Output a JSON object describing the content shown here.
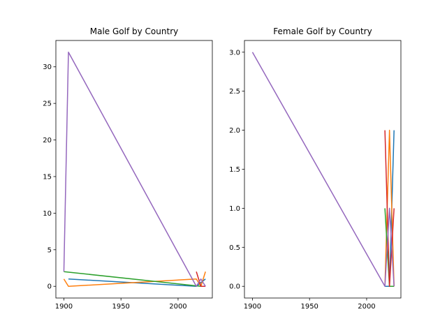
{
  "chart_data": [
    {
      "type": "line",
      "title": "Male Golf by Country",
      "xlabel": "",
      "ylabel": "",
      "xlim": [
        1893,
        2030
      ],
      "ylim": [
        -1.6,
        33.6
      ],
      "xticks": [
        1900,
        1950,
        2000
      ],
      "yticks": [
        0,
        5,
        10,
        15,
        20,
        25,
        30
      ],
      "x_tick_labels": [
        "1900",
        "1950",
        "2000"
      ],
      "y_tick_labels": [
        "0",
        "5",
        "10",
        "15",
        "20",
        "25",
        "30"
      ],
      "grid": false,
      "series": [
        {
          "color": "#1f77b4",
          "x": [
            1904,
            2016,
            2024
          ],
          "y": [
            1,
            0,
            1
          ]
        },
        {
          "color": "#ff7f0e",
          "x": [
            1900,
            1904,
            2016,
            2020,
            2024
          ],
          "y": [
            1,
            0,
            1,
            0,
            2
          ]
        },
        {
          "color": "#2ca02c",
          "x": [
            1900,
            2020
          ],
          "y": [
            2,
            0
          ]
        },
        {
          "color": "#d62728",
          "x": [
            2016,
            2020,
            2024
          ],
          "y": [
            2,
            0,
            0
          ]
        },
        {
          "color": "#9467bd",
          "x": [
            1900,
            1904,
            2016,
            2020,
            2024
          ],
          "y": [
            2,
            32,
            0,
            1,
            0
          ]
        }
      ]
    },
    {
      "type": "line",
      "title": "Female Golf by Country",
      "xlabel": "",
      "ylabel": "",
      "xlim": [
        1893,
        2030
      ],
      "ylim": [
        -0.15,
        3.15
      ],
      "xticks": [
        1900,
        1950,
        2000
      ],
      "yticks": [
        0.0,
        0.5,
        1.0,
        1.5,
        2.0,
        2.5,
        3.0
      ],
      "x_tick_labels": [
        "1900",
        "1950",
        "2000"
      ],
      "y_tick_labels": [
        "0.0",
        "0.5",
        "1.0",
        "1.5",
        "2.0",
        "2.5",
        "3.0"
      ],
      "grid": false,
      "series": [
        {
          "color": "#1f77b4",
          "x": [
            2016,
            2020,
            2024
          ],
          "y": [
            0,
            0,
            2
          ]
        },
        {
          "color": "#ff7f0e",
          "x": [
            2016,
            2020,
            2024
          ],
          "y": [
            0,
            2,
            0
          ]
        },
        {
          "color": "#2ca02c",
          "x": [
            2016,
            2020,
            2024
          ],
          "y": [
            1,
            0,
            0
          ]
        },
        {
          "color": "#d62728",
          "x": [
            2016,
            2020,
            2024
          ],
          "y": [
            2,
            0,
            1
          ]
        },
        {
          "color": "#9467bd",
          "x": [
            1900,
            2016,
            2020,
            2024
          ],
          "y": [
            3,
            0,
            1,
            0
          ]
        }
      ]
    }
  ]
}
